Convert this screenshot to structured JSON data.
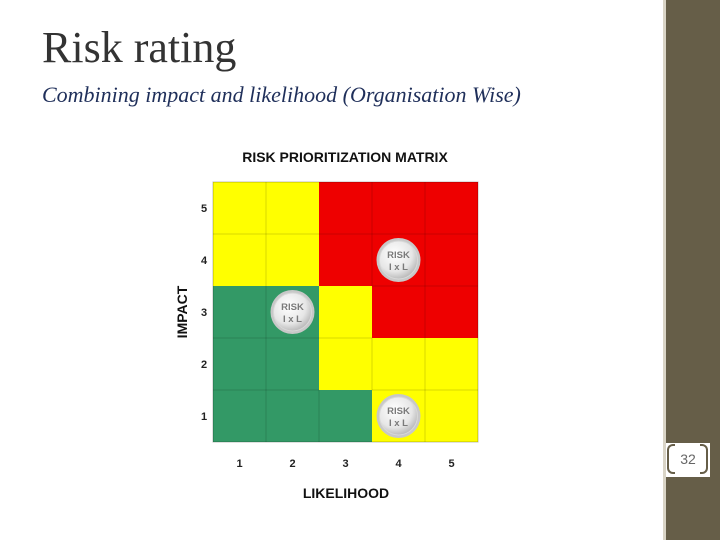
{
  "slide": {
    "title": "Risk rating",
    "subtitle": "Combining impact and likelihood (Organisation Wise)",
    "page_number": "32"
  },
  "matrix": {
    "title": "RISK PRIORITIZATION MATRIX",
    "x_axis_label": "LIKELIHOOD",
    "y_axis_label": "IMPACT",
    "x_ticks": [
      "1",
      "2",
      "3",
      "4",
      "5"
    ],
    "y_ticks": [
      "5",
      "4",
      "3",
      "2",
      "1"
    ],
    "colors": {
      "green": "#339966",
      "yellow": "#ffff00",
      "red": "#ee0000"
    },
    "rows": [
      [
        "yellow",
        "yellow",
        "red",
        "red",
        "red"
      ],
      [
        "yellow",
        "yellow",
        "red",
        "red",
        "red"
      ],
      [
        "green",
        "green",
        "yellow",
        "red",
        "red"
      ],
      [
        "green",
        "green",
        "yellow",
        "yellow",
        "yellow"
      ],
      [
        "green",
        "green",
        "green",
        "yellow",
        "yellow"
      ]
    ],
    "badges": [
      {
        "likelihood": 4,
        "impact": 4,
        "line1": "RISK",
        "line2": "I x L"
      },
      {
        "likelihood": 2,
        "impact": 3,
        "line1": "RISK",
        "line2": "I x L"
      },
      {
        "likelihood": 4,
        "impact": 1,
        "line1": "RISK",
        "line2": "I x L"
      }
    ]
  }
}
